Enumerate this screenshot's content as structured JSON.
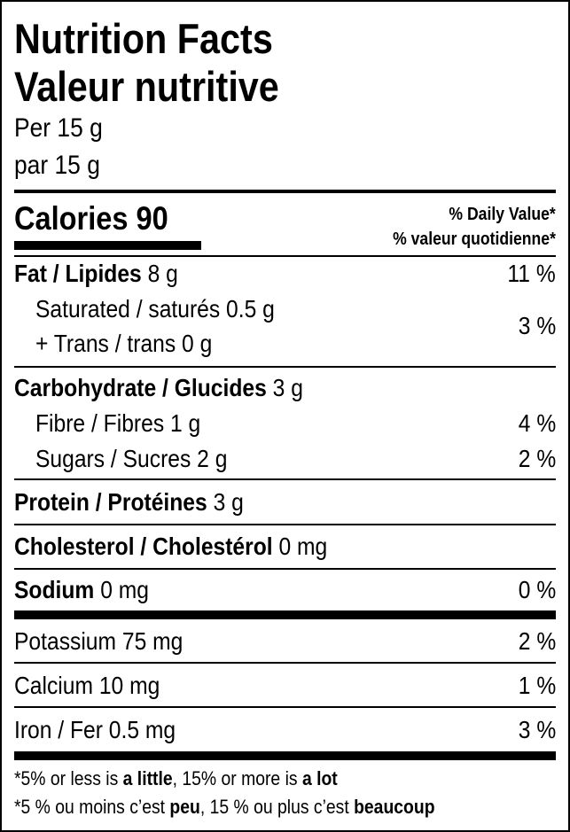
{
  "title_en": "Nutrition Facts",
  "title_fr": "Valeur nutritive",
  "serving_en": "Per 15 g",
  "serving_fr": "par 15 g",
  "calories": {
    "label": "Calories",
    "value": "90"
  },
  "dv_header_en": "% Daily Value*",
  "dv_header_fr": "% valeur quotidienne*",
  "nutrients": {
    "fat": {
      "label": "Fat / Lipides",
      "amount": "8 g",
      "dv": "11 %"
    },
    "saturated": {
      "label": "Saturated / saturés",
      "amount": "0.5 g"
    },
    "trans": {
      "label": "+ Trans / trans",
      "amount": "0 g",
      "dv": "3 %"
    },
    "carbohydrate": {
      "label": "Carbohydrate / Glucides",
      "amount": "3 g"
    },
    "fibre": {
      "label": "Fibre / Fibres",
      "amount": "1 g",
      "dv": "4 %"
    },
    "sugars": {
      "label": "Sugars / Sucres",
      "amount": "2 g",
      "dv": "2 %"
    },
    "protein": {
      "label": "Protein / Protéines",
      "amount": "3 g"
    },
    "cholesterol": {
      "label": "Cholesterol / Cholestérol",
      "amount": "0 mg"
    },
    "sodium": {
      "label": "Sodium",
      "amount": "0 mg",
      "dv": "0 %"
    },
    "potassium": {
      "label": "Potassium",
      "amount": "75 mg",
      "dv": "2 %"
    },
    "calcium": {
      "label": "Calcium",
      "amount": "10 mg",
      "dv": "1 %"
    },
    "iron": {
      "label": "Iron / Fer",
      "amount": "0.5 mg",
      "dv": "3 %"
    }
  },
  "footnote_en": {
    "a": "*5% or less is ",
    "b": "a little",
    "c": ", 15% or more is ",
    "d": "a lot"
  },
  "footnote_fr": {
    "a": "*5 % ou moins c’est ",
    "b": "peu",
    "c": ", 15 % ou plus c’est ",
    "d": "beaucoup"
  }
}
